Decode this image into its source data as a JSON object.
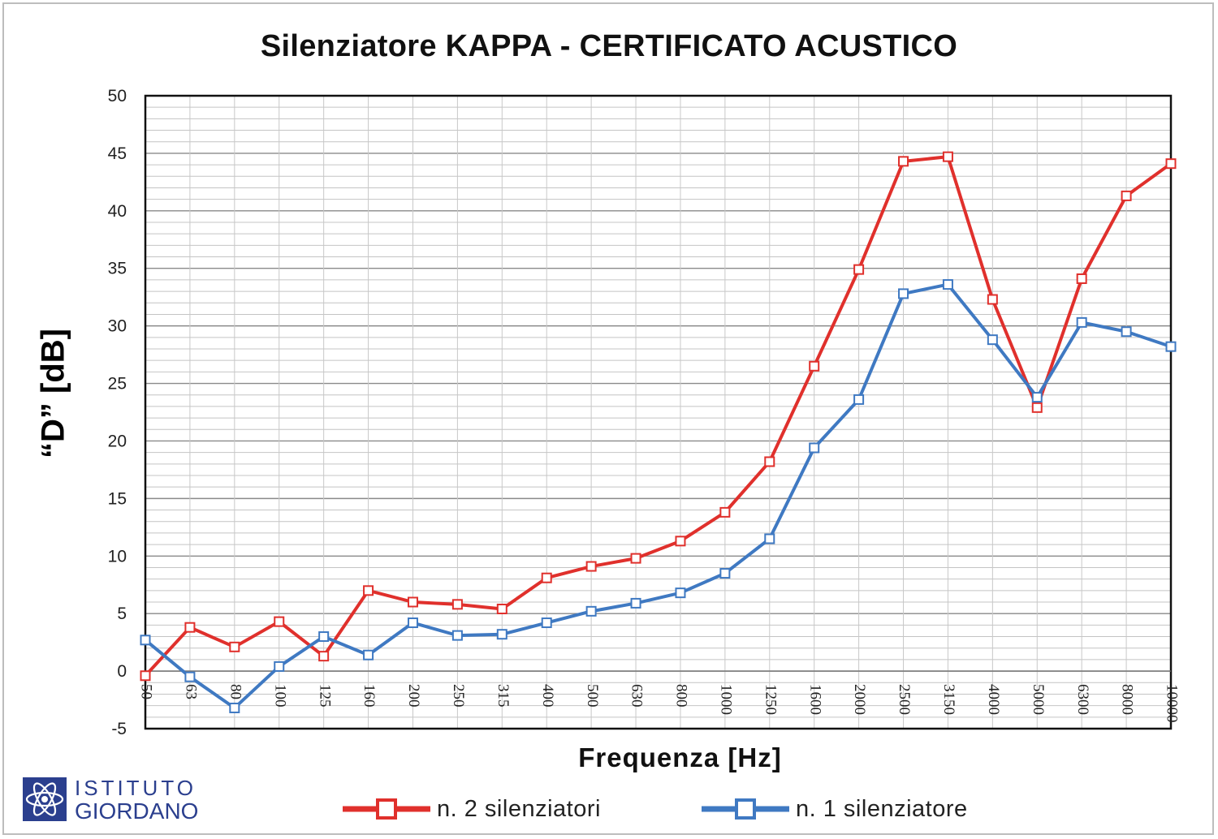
{
  "chart_data": {
    "type": "line",
    "title": "Silenziatore KAPPA - CERTIFICATO ACUSTICO",
    "xlabel": "Frequenza [Hz]",
    "ylabel": "“D” [dB]",
    "ylim": [
      -5,
      50
    ],
    "yticks": [
      "-5",
      "0",
      "5",
      "10",
      "15",
      "20",
      "25",
      "30",
      "35",
      "40",
      "45",
      "50"
    ],
    "y_minor_step": 1,
    "grid": true,
    "legend_position": "bottom",
    "categories": [
      "50",
      "63",
      "80",
      "100",
      "125",
      "160",
      "200",
      "250",
      "315",
      "400",
      "500",
      "630",
      "800",
      "1000",
      "1250",
      "1600",
      "2000",
      "2500",
      "3150",
      "4000",
      "5000",
      "6300",
      "8000",
      "10000"
    ],
    "series": [
      {
        "name": "n. 2 silenziatori",
        "color": "#e0302c",
        "values": [
          -0.4,
          3.8,
          2.1,
          4.3,
          1.3,
          7.0,
          6.0,
          5.8,
          5.4,
          8.1,
          9.1,
          9.8,
          11.3,
          13.8,
          18.2,
          26.5,
          34.9,
          44.3,
          44.7,
          32.3,
          22.9,
          34.1,
          41.3,
          44.1
        ]
      },
      {
        "name": "n. 1 silenziatore",
        "color": "#3f79c2",
        "values": [
          2.7,
          -0.5,
          -3.2,
          0.4,
          3.0,
          1.4,
          4.2,
          3.1,
          3.2,
          4.2,
          5.2,
          5.9,
          6.8,
          8.5,
          11.5,
          19.4,
          23.6,
          32.8,
          33.6,
          28.8,
          23.8,
          30.3,
          29.5,
          28.2
        ]
      }
    ]
  },
  "logo": {
    "line1": "ISTITUTO",
    "line2": "GIORDANO",
    "color": "#2b3f8e"
  }
}
